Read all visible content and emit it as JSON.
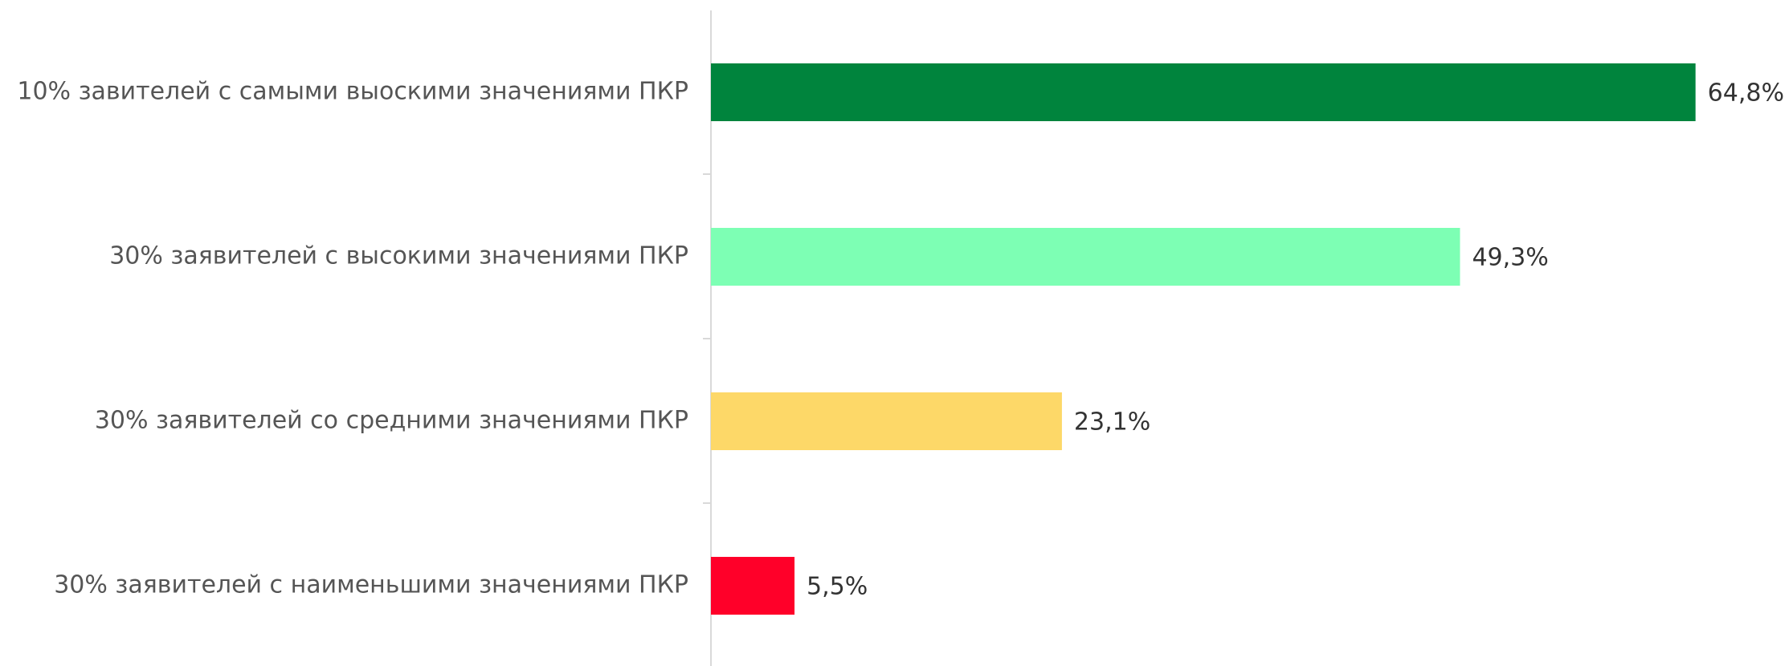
{
  "chart_data": {
    "type": "bar",
    "orientation": "horizontal",
    "categories": [
      "10% завителей с самыми выоскими значениями ПКР",
      "30% заявителей с высокими значениями ПКР",
      "30% заявителей со средними значениями ПКР",
      "30% заявителей с наименьшими значениями ПКР"
    ],
    "values": [
      64.8,
      49.3,
      23.1,
      5.5
    ],
    "value_labels": [
      "64,8%",
      "49,3%",
      "23,1%",
      "5,5%"
    ],
    "colors": [
      "#00843d",
      "#7dffb4",
      "#fdd868",
      "#ff0029"
    ],
    "xlim": [
      0,
      70
    ]
  }
}
